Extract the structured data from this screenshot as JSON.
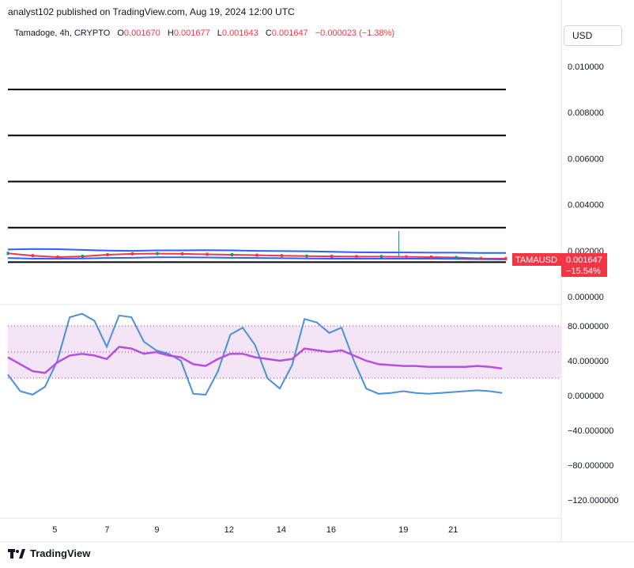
{
  "header": {
    "publisher": "analyst102 published on TradingView.com, Aug 19, 2024 12:00 UTC",
    "symbol": "Tamadoge, 4h, CRYPTO",
    "ohlc": [
      {
        "label": "O",
        "value": "0.001670"
      },
      {
        "label": "H",
        "value": "0.001677"
      },
      {
        "label": "L",
        "value": "0.001643"
      },
      {
        "label": "C",
        "value": "0.001647"
      }
    ],
    "change": "−0.000023 (−1.38%)"
  },
  "currency_button": "USD",
  "price_badge": {
    "ticker": "TAMAUSD",
    "price": "0.001647",
    "change": "−15.54%"
  },
  "footer": {
    "brand": "TradingView"
  },
  "colors": {
    "up": "#089981",
    "down": "#f23645",
    "blue": "#2962ff",
    "stoch_k": "#4a90d9",
    "stoch_d": "#b74fe0",
    "band_fill": "#f3e5f5"
  },
  "chart_data": [
    {
      "type": "line",
      "title": "Tamadoge, 4h, CRYPTO",
      "x_tick_labels": [
        "5",
        "7",
        "9",
        "12",
        "14",
        "16",
        "19",
        "21"
      ],
      "y_tick_labels": [
        "0.010000",
        "0.008000",
        "0.006000",
        "0.004000",
        "0.002000",
        "0.000000"
      ],
      "ylim": [
        0,
        0.01
      ],
      "horizontal_levels": [
        0.009,
        0.007,
        0.005,
        0.003,
        0.0015
      ],
      "x": [
        0,
        1,
        2,
        3,
        4,
        5,
        6,
        7,
        8,
        9,
        10,
        11,
        12,
        13,
        14,
        15,
        16,
        17,
        18,
        19,
        20
      ],
      "series": [
        {
          "name": "upper_band",
          "values": [
            0.00205,
            0.00207,
            0.00206,
            0.00203,
            0.002,
            0.00199,
            0.00201,
            0.00201,
            0.00202,
            0.00201,
            0.00199,
            0.00198,
            0.00197,
            0.00195,
            0.00193,
            0.00192,
            0.00192,
            0.00191,
            0.00191,
            0.0019,
            0.0019
          ]
        },
        {
          "name": "price",
          "values": [
            0.00188,
            0.00178,
            0.00172,
            0.00175,
            0.00182,
            0.00186,
            0.00187,
            0.00186,
            0.00184,
            0.00182,
            0.0018,
            0.00178,
            0.00176,
            0.00175,
            0.00174,
            0.00174,
            0.00173,
            0.00172,
            0.0017,
            0.00166,
            0.00165
          ]
        },
        {
          "name": "lower_band",
          "values": [
            0.00168,
            0.00165,
            0.00165,
            0.00166,
            0.00168,
            0.00169,
            0.00171,
            0.00171,
            0.0017,
            0.00169,
            0.00168,
            0.00167,
            0.00166,
            0.00165,
            0.00165,
            0.00165,
            0.00165,
            0.00165,
            0.00164,
            0.00163,
            0.00162
          ]
        }
      ],
      "spike": {
        "x": 15.7,
        "high": 0.00285
      }
    },
    {
      "type": "line",
      "y_tick_labels": [
        "80.000000",
        "40.000000",
        "0.000000",
        "−40.000000",
        "−80.000000",
        "−120.000000"
      ],
      "ylim": [
        -135,
        100
      ],
      "band": [
        20,
        80
      ],
      "midline": 50,
      "x_points": [
        0,
        0.5,
        1,
        1.5,
        2,
        2.5,
        3,
        3.5,
        4,
        4.5,
        5,
        5.5,
        6,
        6.5,
        7,
        7.5,
        8,
        8.5,
        9,
        9.5,
        10,
        10.5,
        11,
        11.5,
        12,
        12.5,
        13,
        13.5,
        14,
        14.5,
        15,
        15.5,
        16,
        16.5,
        17,
        17.5,
        18,
        18.5,
        19,
        19.5,
        20
      ],
      "series": [
        {
          "name": "%K",
          "values": [
            24,
            5,
            1,
            10,
            40,
            90,
            94,
            86,
            56,
            92,
            90,
            62,
            52,
            48,
            40,
            2,
            1,
            28,
            70,
            78,
            58,
            20,
            8,
            35,
            88,
            84,
            72,
            78,
            40,
            8,
            2,
            3,
            5,
            3,
            2,
            3,
            4,
            5,
            6,
            5,
            3
          ]
        },
        {
          "name": "%D",
          "values": [
            44,
            36,
            28,
            26,
            38,
            46,
            48,
            46,
            42,
            56,
            54,
            48,
            50,
            46,
            44,
            36,
            34,
            42,
            48,
            48,
            44,
            42,
            40,
            42,
            54,
            52,
            50,
            52,
            46,
            40,
            36,
            35,
            34,
            34,
            33,
            33,
            33,
            33,
            34,
            33,
            31
          ]
        }
      ]
    }
  ]
}
